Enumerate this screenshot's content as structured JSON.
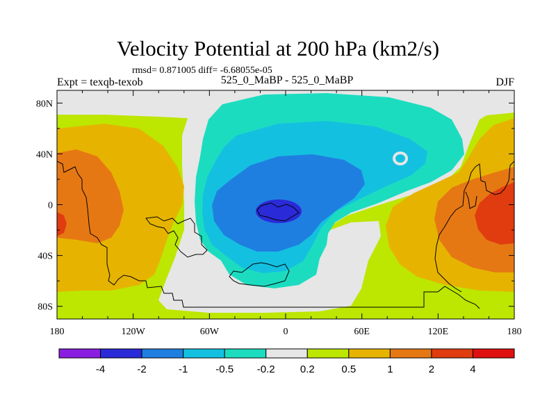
{
  "title": "Velocity Potential at 200 hPa (km2/s)",
  "stats": "rmsd= 0.871005 diff= -6.68055e-05",
  "expt": "Expt = texqb-texob",
  "center_label": "525_0_MaBP - 525_0_MaBP",
  "season": "DJF",
  "map": {
    "projection": "cylindrical-equidistant",
    "lon_range": [
      -180,
      180
    ],
    "lat_range": [
      -90,
      90
    ],
    "x_ticks": [
      "180",
      "120W",
      "60W",
      "0",
      "60E",
      "120E",
      "180"
    ],
    "y_ticks": [
      "80N",
      "40N",
      "0",
      "40S",
      "80S"
    ]
  },
  "colorbar": {
    "labels": [
      "-4",
      "-2",
      "-1",
      "-0.5",
      "-0.2",
      "0.2",
      "0.5",
      "1",
      "2",
      "4"
    ],
    "colors": [
      "#8a1ee0",
      "#2a2ad8",
      "#1f7fe0",
      "#14c0e0",
      "#1cdcc0",
      "#e6e6e6",
      "#bde600",
      "#e6b400",
      "#e67814",
      "#e03c10",
      "#e01010"
    ]
  }
}
